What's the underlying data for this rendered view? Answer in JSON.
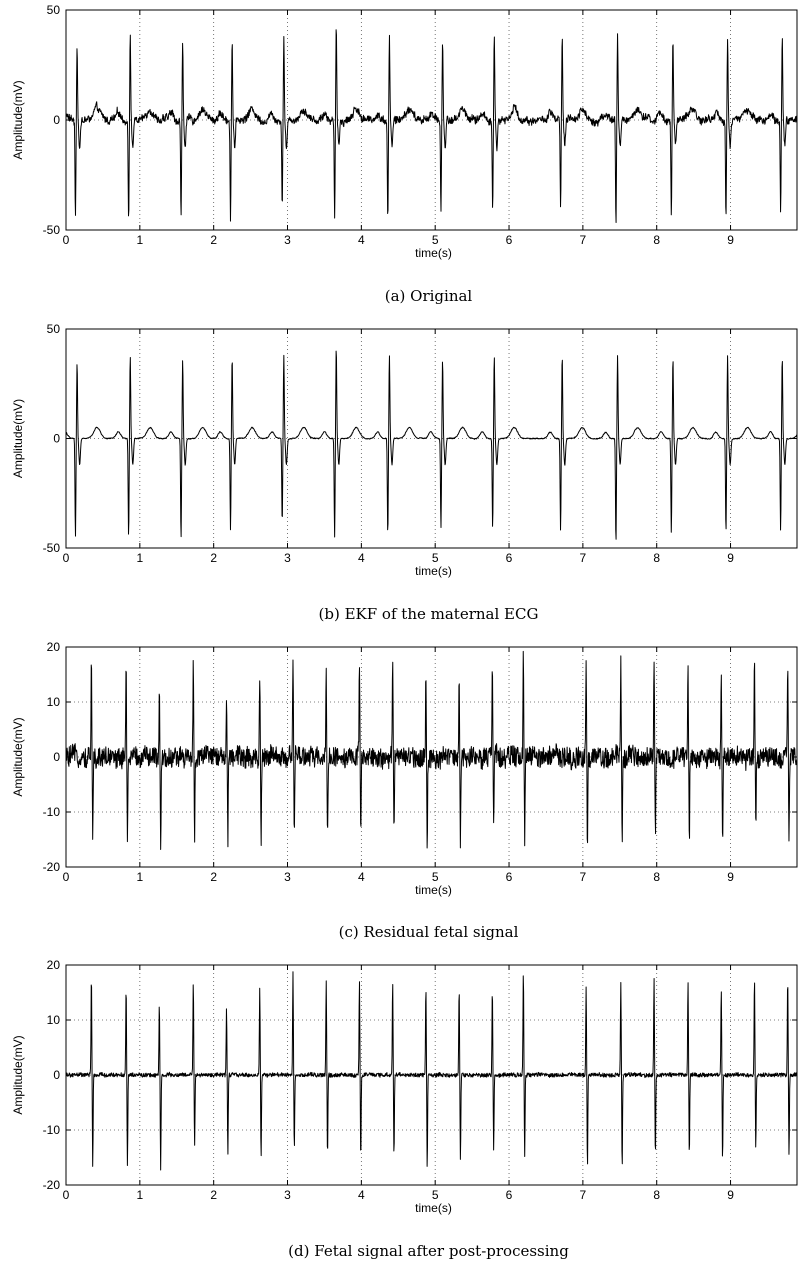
{
  "chart_data": [
    {
      "type": "line",
      "caption": "(a) Original",
      "xlabel": "time(s)",
      "ylabel": "Amplitude(mV)",
      "xlim": [
        0,
        9.9
      ],
      "ylim": [
        -50,
        50
      ],
      "xticks": [
        0,
        1,
        2,
        3,
        4,
        5,
        6,
        7,
        8,
        9
      ],
      "yticks": [
        -50,
        0,
        50
      ],
      "grid": "dotted",
      "series": [
        {
          "peak_times": [
            0.15,
            0.87,
            1.58,
            2.25,
            2.95,
            3.66,
            4.38,
            5.1,
            5.8,
            6.72,
            7.47,
            8.22,
            8.96,
            9.7
          ],
          "peak_values": [
            35,
            38,
            36,
            37,
            38,
            42,
            38,
            36,
            38,
            38,
            38,
            37,
            38,
            37
          ],
          "trough_values": [
            -45,
            -45,
            -46,
            -44,
            -39,
            -45,
            -45,
            -41,
            -41,
            -42,
            -48,
            -43,
            -43,
            -42
          ],
          "baseline_noise_mV": 3
        }
      ]
    },
    {
      "type": "line",
      "caption": "(b) EKF of the maternal ECG",
      "xlabel": "time(s)",
      "ylabel": "Amplitude(mV)",
      "xlim": [
        0,
        9.9
      ],
      "ylim": [
        -50,
        50
      ],
      "xticks": [
        0,
        1,
        2,
        3,
        4,
        5,
        6,
        7,
        8,
        9
      ],
      "yticks": [
        -50,
        0,
        50
      ],
      "grid": "dotted",
      "series": [
        {
          "peak_times": [
            0.15,
            0.87,
            1.58,
            2.25,
            2.95,
            3.66,
            4.38,
            5.1,
            5.8,
            6.72,
            7.47,
            8.22,
            8.96,
            9.7
          ],
          "peak_values": [
            35,
            38,
            36,
            37,
            38,
            42,
            38,
            36,
            38,
            38,
            38,
            37,
            38,
            37
          ],
          "trough_values": [
            -45,
            -45,
            -46,
            -42,
            -39,
            -45,
            -44,
            -41,
            -41,
            -42,
            -48,
            -43,
            -43,
            -42
          ],
          "baseline_noise_mV": 0.4
        }
      ]
    },
    {
      "type": "line",
      "caption": "(c) Residual fetal signal",
      "xlabel": "time(s)",
      "ylabel": "Amplitude(mV)",
      "xlim": [
        0,
        9.9
      ],
      "ylim": [
        -20,
        20
      ],
      "xticks": [
        0,
        1,
        2,
        3,
        4,
        5,
        6,
        7,
        8,
        9
      ],
      "yticks": [
        -20,
        -10,
        0,
        10,
        20
      ],
      "grid": "dotted",
      "series": [
        {
          "peak_times": [
            0.35,
            0.82,
            1.27,
            1.73,
            2.18,
            2.63,
            3.08,
            3.53,
            3.98,
            4.43,
            4.88,
            5.33,
            5.78,
            6.2,
            7.05,
            7.52,
            7.97,
            8.43,
            8.88,
            9.33,
            9.78
          ],
          "peak_values": [
            18,
            16,
            13,
            17,
            12,
            16,
            19,
            17,
            17,
            17,
            16,
            16,
            16,
            19,
            16,
            17,
            18,
            17,
            16,
            18,
            18
          ],
          "trough_values": [
            -16,
            -16.5,
            -17.5,
            -14,
            -14.5,
            -15.5,
            -14,
            -15,
            -15.5,
            -15,
            -17,
            -16,
            -14,
            -15,
            -17,
            -17,
            -15,
            -15,
            -16,
            -13.5,
            -15
          ],
          "baseline_noise_mV": 2
        }
      ]
    },
    {
      "type": "line",
      "caption": "(d) Fetal signal after post-processing",
      "xlabel": "time(s)",
      "ylabel": "Amplitude(mV)",
      "xlim": [
        0,
        9.9
      ],
      "ylim": [
        -20,
        20
      ],
      "xticks": [
        0,
        1,
        2,
        3,
        4,
        5,
        6,
        7,
        8,
        9
      ],
      "yticks": [
        -20,
        -10,
        0,
        10,
        20
      ],
      "grid": "dotted",
      "series": [
        {
          "peak_times": [
            0.35,
            0.82,
            1.27,
            1.73,
            2.18,
            2.63,
            3.08,
            3.53,
            3.98,
            4.43,
            4.88,
            5.33,
            5.78,
            6.2,
            7.05,
            7.52,
            7.97,
            8.43,
            8.88,
            9.33,
            9.78
          ],
          "peak_values": [
            18,
            16,
            13,
            17,
            12,
            16,
            19,
            17,
            17,
            17,
            16,
            16,
            16,
            19,
            16,
            17,
            18,
            17,
            16,
            18,
            18
          ],
          "trough_values": [
            -16.5,
            -16.5,
            -17,
            -13,
            -14.5,
            -15.5,
            -13.5,
            -15,
            -15.5,
            -15,
            -17,
            -16,
            -14,
            -15,
            -17,
            -17,
            -15,
            -15,
            -16,
            -13.5,
            -14.5
          ],
          "baseline_noise_mV": 0.4
        }
      ]
    }
  ]
}
